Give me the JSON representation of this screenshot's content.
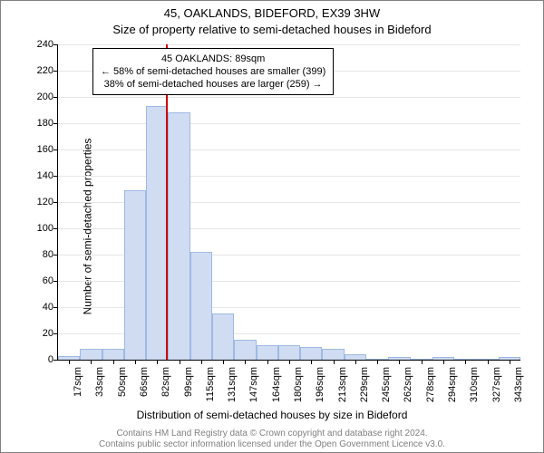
{
  "title_main": "45, OAKLANDS, BIDEFORD, EX39 3HW",
  "title_sub": "Size of property relative to semi-detached houses in Bideford",
  "ylabel": "Number of semi-detached properties",
  "xlabel": "Distribution of semi-detached houses by size in Bideford",
  "attribution_line1": "Contains HM Land Registry data © Crown copyright and database right 2024.",
  "attribution_line2": "Contains public sector information licensed under the Open Government Licence v3.0.",
  "chart": {
    "type": "histogram",
    "background_color": "#ffffff",
    "grid_color": "#e6e6e6",
    "axis_color": "#000000",
    "bar_fill": "#cfdcf2",
    "bar_border": "#9fb9e3",
    "reference_line_color": "#d00000",
    "ylim": [
      0,
      240
    ],
    "ytick_step": 20,
    "yticks": [
      0,
      20,
      40,
      60,
      80,
      100,
      120,
      140,
      160,
      180,
      200,
      220,
      240
    ],
    "xticks": [
      "17sqm",
      "33sqm",
      "50sqm",
      "66sqm",
      "82sqm",
      "99sqm",
      "115sqm",
      "131sqm",
      "147sqm",
      "164sqm",
      "180sqm",
      "196sqm",
      "213sqm",
      "229sqm",
      "245sqm",
      "262sqm",
      "278sqm",
      "294sqm",
      "310sqm",
      "327sqm",
      "343sqm"
    ],
    "values": [
      3,
      8,
      8,
      129,
      193,
      188,
      82,
      35,
      15,
      11,
      11,
      10,
      8,
      4,
      0,
      2,
      0,
      2,
      0,
      0,
      2
    ],
    "reference_value_sqm": 89,
    "annotation": {
      "line1": "45 OAKLANDS: 89sqm",
      "line2": "← 58% of semi-detached houses are smaller (399)",
      "line3": "38% of semi-detached houses are larger (259) →"
    }
  }
}
